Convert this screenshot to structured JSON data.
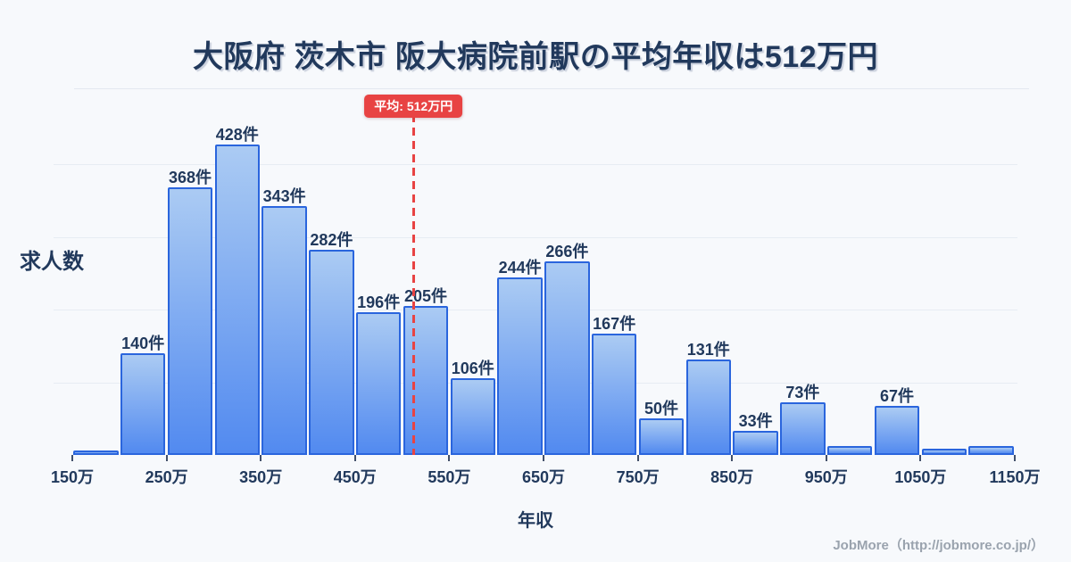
{
  "header": {
    "title": "大阪府 茨木市 阪大病院前駅の平均年収は512万円"
  },
  "footer": {
    "credit": "JobMore（http://jobmore.co.jp/）"
  },
  "theme": {
    "background": "#f7f9fc",
    "text_navy": "#21395c",
    "grid_color": "#e7ecf3",
    "bar_fill_top": "#abcbf3",
    "bar_fill_bottom": "#528af0",
    "bar_border": "#2a65dd",
    "average_red": "#e84343",
    "footer_gray": "#9aa3ae"
  },
  "chart_data": {
    "type": "bar",
    "title": "大阪府 茨木市 阪大病院前駅の平均年収は512万円",
    "xlabel": "年収",
    "ylabel": "求人数",
    "unit_suffix": "件",
    "x_tick_labels": [
      "150万",
      "250万",
      "350万",
      "450万",
      "550万",
      "650万",
      "750万",
      "850万",
      "950万",
      "1050万",
      "1150万"
    ],
    "x_tick_values_man_yen": [
      150,
      250,
      350,
      450,
      550,
      650,
      750,
      850,
      950,
      1050,
      1150
    ],
    "bin_width_man_yen": 50,
    "bin_start_man_yen": [
      150,
      200,
      250,
      300,
      350,
      400,
      450,
      500,
      550,
      600,
      650,
      700,
      750,
      800,
      850,
      900,
      950,
      1000,
      1050,
      1100
    ],
    "values": [
      6,
      140,
      368,
      428,
      343,
      282,
      196,
      205,
      106,
      244,
      266,
      167,
      50,
      131,
      33,
      73,
      12,
      67,
      9,
      12
    ],
    "bar_labels": [
      "",
      "140件",
      "368件",
      "428件",
      "343件",
      "282件",
      "196件",
      "205件",
      "106件",
      "244件",
      "266件",
      "167件",
      "50件",
      "131件",
      "33件",
      "73件",
      "",
      "67件",
      "",
      ""
    ],
    "ylim": [
      0,
      430
    ],
    "gridline_values": [
      100,
      200,
      300,
      400
    ],
    "grid": true,
    "legend": false,
    "average": {
      "value_man_yen": 512,
      "label": "平均: 512万円"
    }
  }
}
